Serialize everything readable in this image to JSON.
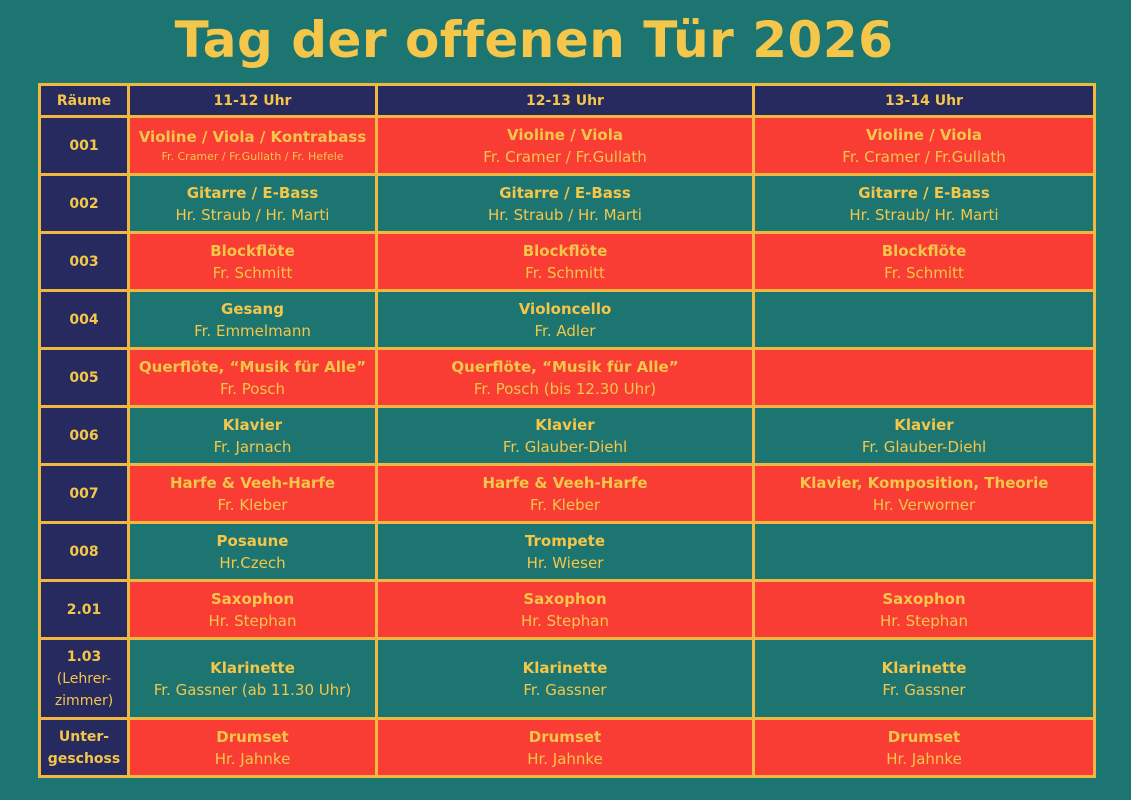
{
  "title": "Tag der offenen Tür 2026",
  "colors": {
    "background": "#1c7571",
    "header": "#262a5e",
    "red_row": "#f93d34",
    "accent_text": "#f4c64a",
    "border": "#f0b741"
  },
  "table": {
    "headers": [
      "Räume",
      "11-12 Uhr",
      "12-13 Uhr",
      "13-14 Uhr"
    ],
    "rows": [
      {
        "room": "001",
        "cells": [
          {
            "instrument": "Violine / Viola / Kontrabass",
            "teacher": "Fr. Cramer / Fr.Gullath /  Fr. Hefele"
          },
          {
            "instrument": "Violine / Viola",
            "teacher": "Fr. Cramer / Fr.Gullath"
          },
          {
            "instrument": "Violine / Viola",
            "teacher": "Fr. Cramer / Fr.Gullath"
          }
        ]
      },
      {
        "room": "002",
        "cells": [
          {
            "instrument": "Gitarre / E-Bass",
            "teacher": "Hr. Straub / Hr. Marti"
          },
          {
            "instrument": "Gitarre / E-Bass",
            "teacher": "Hr. Straub / Hr. Marti"
          },
          {
            "instrument": "Gitarre / E-Bass",
            "teacher": "Hr. Straub/ Hr. Marti"
          }
        ]
      },
      {
        "room": "003",
        "cells": [
          {
            "instrument": "Blockflöte",
            "teacher": "Fr. Schmitt"
          },
          {
            "instrument": "Blockflöte",
            "teacher": "Fr. Schmitt"
          },
          {
            "instrument": "Blockflöte",
            "teacher": "Fr. Schmitt"
          }
        ]
      },
      {
        "room": "004",
        "cells": [
          {
            "instrument": "Gesang",
            "teacher": "Fr. Emmelmann"
          },
          {
            "instrument": "Violoncello",
            "teacher": "Fr. Adler"
          },
          {
            "instrument": "",
            "teacher": ""
          }
        ]
      },
      {
        "room": "005",
        "cells": [
          {
            "instrument": "Querflöte, “Musik für Alle”",
            "teacher": "Fr. Posch"
          },
          {
            "instrument": "Querflöte, “Musik für Alle”",
            "teacher": "Fr. Posch (bis 12.30 Uhr)"
          },
          {
            "instrument": "",
            "teacher": ""
          }
        ]
      },
      {
        "room": "006",
        "cells": [
          {
            "instrument": "Klavier",
            "teacher": "Fr. Jarnach"
          },
          {
            "instrument": "Klavier",
            "teacher": "Fr. Glauber-Diehl"
          },
          {
            "instrument": "Klavier",
            "teacher": "Fr. Glauber-Diehl"
          }
        ]
      },
      {
        "room": "007",
        "cells": [
          {
            "instrument": "Harfe & Veeh-Harfe",
            "teacher": "Fr. Kleber"
          },
          {
            "instrument": "Harfe & Veeh-Harfe",
            "teacher": "Fr. Kleber"
          },
          {
            "instrument": "Klavier, Komposition, Theorie",
            "teacher": "Hr. Verworner"
          }
        ]
      },
      {
        "room": "008",
        "cells": [
          {
            "instrument": "Posaune",
            "teacher": "Hr.Czech"
          },
          {
            "instrument": "Trompete",
            "teacher": "Hr. Wieser"
          },
          {
            "instrument": "",
            "teacher": ""
          }
        ]
      },
      {
        "room": "2.01",
        "cells": [
          {
            "instrument": "Saxophon",
            "teacher": "Hr. Stephan"
          },
          {
            "instrument": "Saxophon",
            "teacher": "Hr. Stephan"
          },
          {
            "instrument": "Saxophon",
            "teacher": "Hr. Stephan"
          }
        ]
      },
      {
        "room_lines": [
          "1.03",
          "(Lehrer-",
          "zimmer)"
        ],
        "cells": [
          {
            "instrument": "Klarinette",
            "teacher": "Fr. Gassner (ab 11.30 Uhr)"
          },
          {
            "instrument": "Klarinette",
            "teacher": "Fr. Gassner"
          },
          {
            "instrument": "Klarinette",
            "teacher": "Fr. Gassner"
          }
        ]
      },
      {
        "room_lines": [
          "Unter-",
          "geschoss"
        ],
        "cells": [
          {
            "instrument": "Drumset",
            "teacher": "Hr. Jahnke"
          },
          {
            "instrument": "Drumset",
            "teacher": "Hr. Jahnke"
          },
          {
            "instrument": "Drumset",
            "teacher": "Hr. Jahnke"
          }
        ]
      }
    ]
  }
}
